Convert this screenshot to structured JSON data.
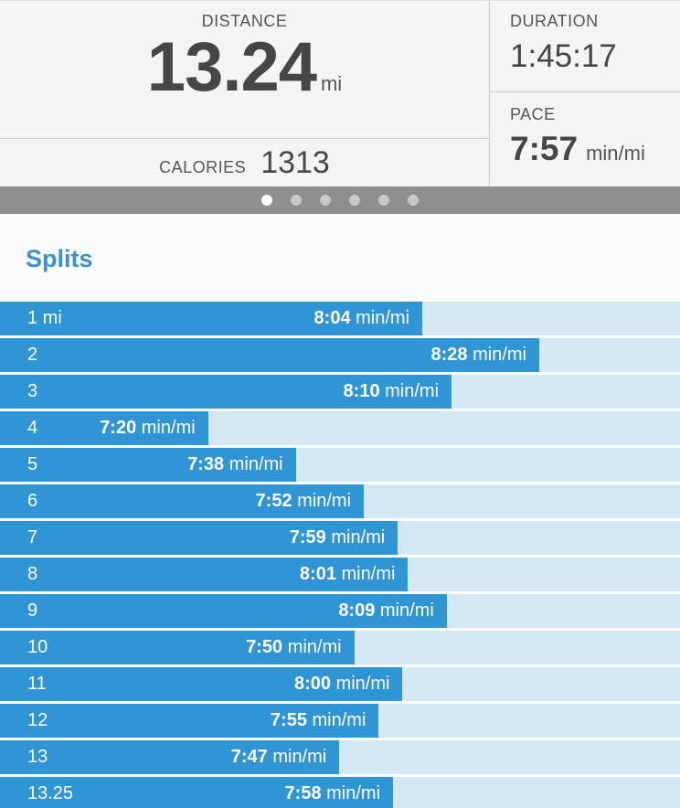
{
  "summary": {
    "distance": {
      "label": "DISTANCE",
      "value": "13.24",
      "unit": "mi"
    },
    "calories": {
      "label": "CALORIES",
      "value": "1313"
    },
    "duration": {
      "label": "DURATION",
      "value": "1:45:17"
    },
    "pace": {
      "label": "PACE",
      "value": "7:57",
      "unit": "min/mi"
    }
  },
  "carousel": {
    "dot_count": 6,
    "active_index": 0
  },
  "splits": {
    "title": "Splits"
  },
  "chart_data": {
    "type": "bar",
    "orientation": "horizontal",
    "title": "Splits",
    "categories": [
      "1 mi",
      "2",
      "3",
      "4",
      "5",
      "6",
      "7",
      "8",
      "9",
      "10",
      "11",
      "12",
      "13",
      "13.25"
    ],
    "values": [
      "8:04",
      "8:28",
      "8:10",
      "7:20",
      "7:38",
      "7:52",
      "7:59",
      "8:01",
      "8:09",
      "7:50",
      "8:00",
      "7:55",
      "7:47",
      "7:58"
    ],
    "unit": "min/mi",
    "value_axis": "pace_min_per_mi",
    "pace_domain_seconds": [
      440,
      508
    ],
    "bar_width_percent_range": [
      30.6,
      79.3
    ],
    "legend": "none",
    "grid": "off"
  },
  "colors": {
    "bar_blue": "#3095d5",
    "track_light_blue": "#d3e7f4",
    "heading_blue": "#3b90ce",
    "carousel_gray": "#8f8f8f",
    "active_dot": "#ffffff",
    "inactive_dot": "#c7c7c7",
    "panel_background": "#f4f4f4",
    "dark_text": "#464646"
  }
}
